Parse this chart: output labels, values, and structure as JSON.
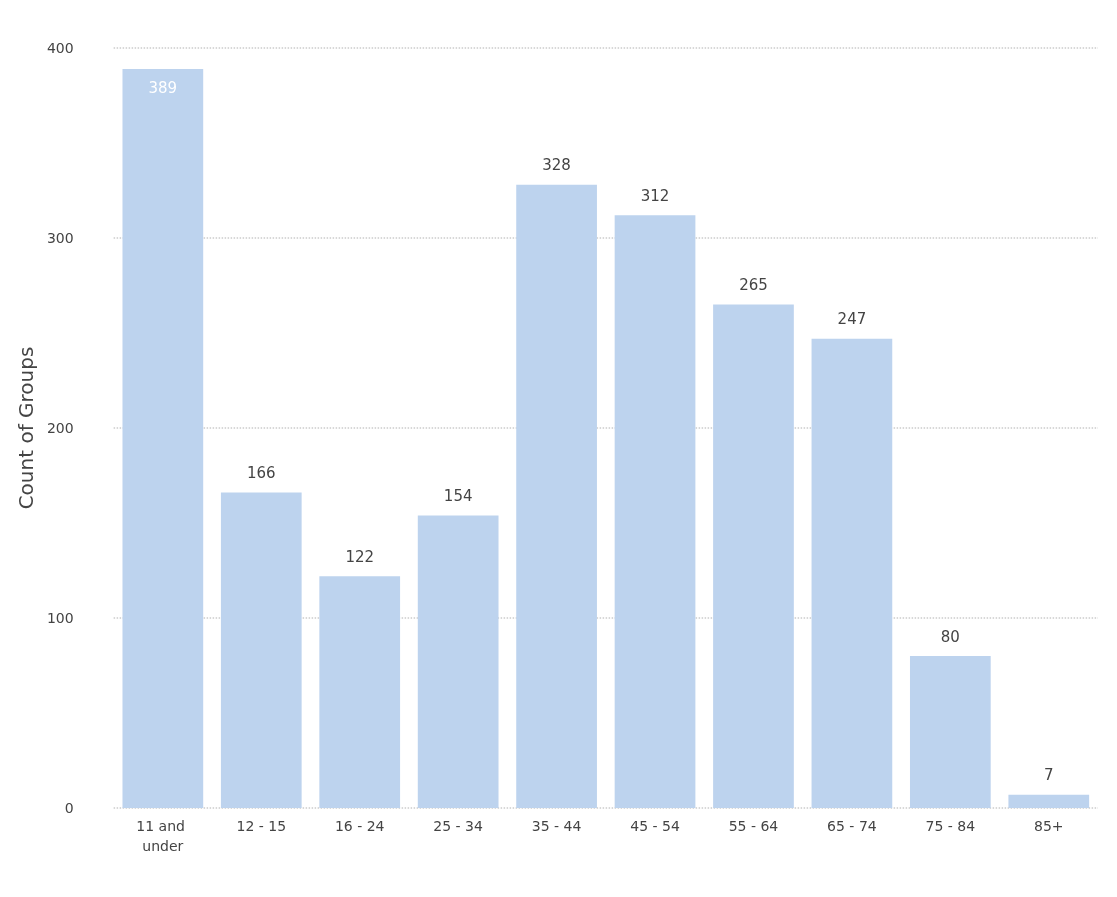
{
  "chart_data": {
    "type": "bar",
    "ylabel": "Count of Groups",
    "categories": [
      "11 and under",
      "12 - 15",
      "16 - 24",
      "25 - 34",
      "35 - 44",
      "45 - 54",
      "55 - 64",
      "65 - 74",
      "75 - 84",
      "85+"
    ],
    "values": [
      389,
      166,
      122,
      154,
      328,
      312,
      265,
      247,
      80,
      7
    ],
    "color": "#bdd3ee",
    "ylim": [
      0,
      400
    ],
    "yticks": [
      0,
      100,
      200,
      300,
      400
    ],
    "grid": "y",
    "data_labels": true
  }
}
